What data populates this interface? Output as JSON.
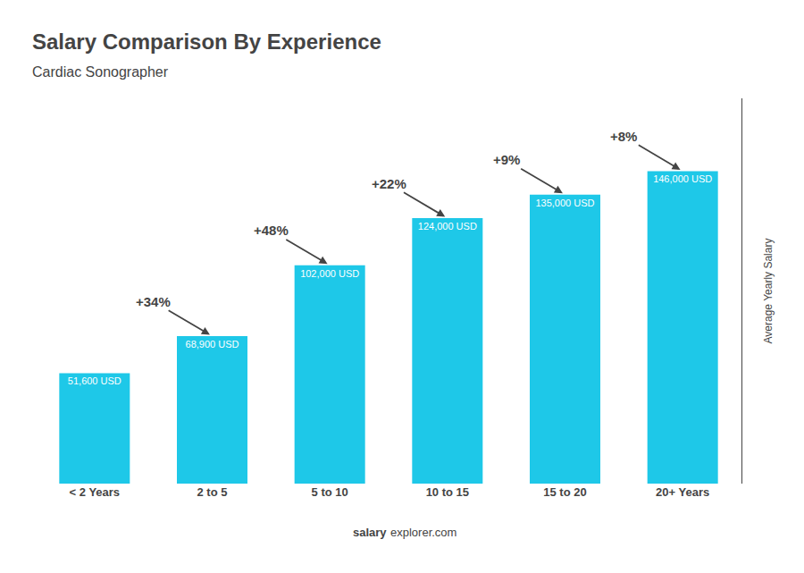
{
  "chart_data": {
    "type": "bar",
    "title": "Salary Comparison By Experience",
    "subtitle": "Cardiac Sonographer",
    "ylabel": "Average Yearly Salary",
    "categories": [
      "< 2 Years",
      "2 to 5",
      "5 to 10",
      "10 to 15",
      "15 to 20",
      "20+ Years"
    ],
    "values": [
      51600,
      68900,
      102000,
      124000,
      135000,
      146000
    ],
    "value_labels": [
      "51,600 USD",
      "68,900 USD",
      "102,000 USD",
      "124,000 USD",
      "135,000 USD",
      "146,000 USD"
    ],
    "data_labels": true,
    "annotations": [
      "+34%",
      "+48%",
      "+22%",
      "+9%",
      "+8%"
    ],
    "watermark": [
      "salary",
      "explorer.com"
    ],
    "color": "#1ec8e8",
    "ylim": [
      0,
      180000
    ],
    "tick_labels": "x",
    "grid": false
  }
}
